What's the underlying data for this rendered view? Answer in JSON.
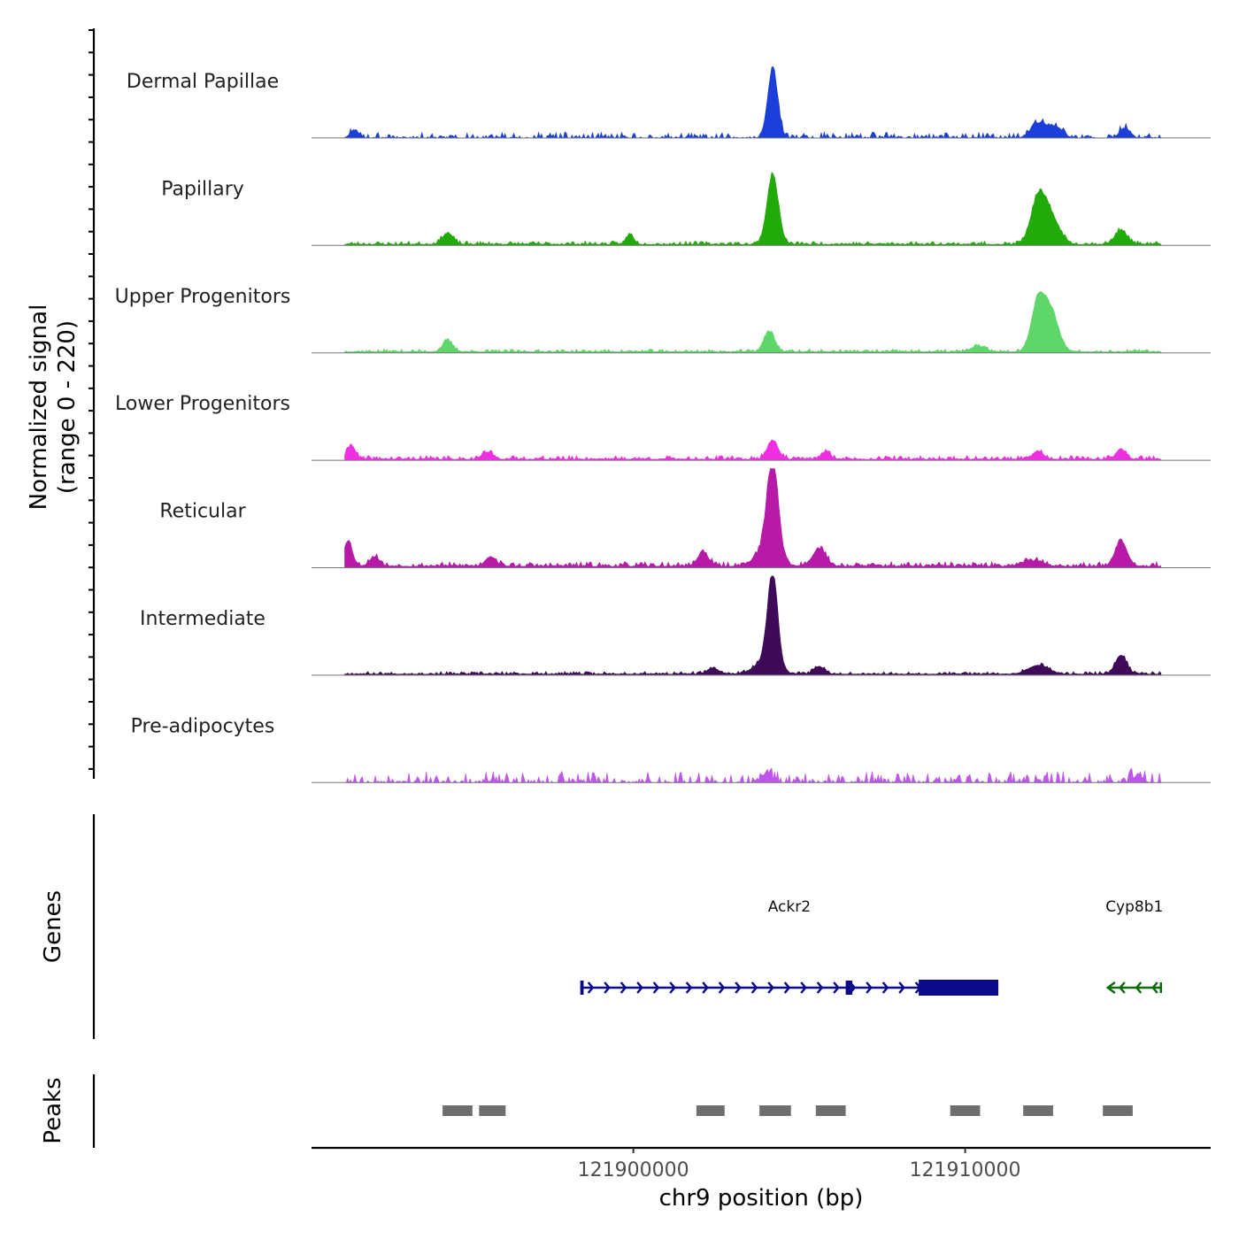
{
  "chart_data": {
    "type": "area",
    "title": "",
    "ylabel": [
      "Normalized signal",
      "(range 0 - 220)"
    ],
    "xlabel": "chr9 position (bp)",
    "chromosome": "chr9",
    "xlim": [
      121890300,
      121917400
    ],
    "ylim": [
      0,
      220
    ],
    "x_ticks": [
      121900000,
      121910000
    ],
    "x_tick_labels": [
      "121900000",
      "121910000"
    ],
    "tracks": [
      {
        "name": "Dermal Papillae",
        "color": "#1b3fd8",
        "noise": {
          "base": 6,
          "amp": 16,
          "seed": 11,
          "gaps": true
        },
        "peaks": [
          {
            "x": 121891600,
            "h": 25,
            "w": 130
          },
          {
            "x": 121904200,
            "h": 218,
            "w": 150
          },
          {
            "x": 121912200,
            "h": 45,
            "w": 220
          },
          {
            "x": 121912700,
            "h": 35,
            "w": 220
          },
          {
            "x": 121914800,
            "h": 30,
            "w": 150
          }
        ]
      },
      {
        "name": "Papillary",
        "color": "#22aa0a",
        "noise": {
          "base": 5,
          "amp": 11,
          "seed": 23,
          "gaps": false
        },
        "peaks": [
          {
            "x": 121894400,
            "h": 35,
            "w": 160
          },
          {
            "x": 121899900,
            "h": 32,
            "w": 110
          },
          {
            "x": 121904200,
            "h": 220,
            "w": 170
          },
          {
            "x": 121912200,
            "h": 140,
            "w": 220
          },
          {
            "x": 121912600,
            "h": 80,
            "w": 250
          },
          {
            "x": 121914700,
            "h": 45,
            "w": 180
          }
        ]
      },
      {
        "name": "Upper Progenitors",
        "color": "#5ed66a",
        "noise": {
          "base": 5,
          "amp": 9,
          "seed": 37,
          "gaps": false
        },
        "peaks": [
          {
            "x": 121894400,
            "h": 35,
            "w": 150
          },
          {
            "x": 121904100,
            "h": 65,
            "w": 160
          },
          {
            "x": 121912200,
            "h": 160,
            "w": 200
          },
          {
            "x": 121912600,
            "h": 120,
            "w": 220
          },
          {
            "x": 121910400,
            "h": 18,
            "w": 200
          }
        ]
      },
      {
        "name": "Lower Progenitors",
        "color": "#f02ee2",
        "noise": {
          "base": 5,
          "amp": 12,
          "seed": 41,
          "gaps": false
        },
        "peaks": [
          {
            "x": 121891500,
            "h": 45,
            "w": 120
          },
          {
            "x": 121895600,
            "h": 22,
            "w": 160
          },
          {
            "x": 121904200,
            "h": 60,
            "w": 160
          },
          {
            "x": 121905800,
            "h": 22,
            "w": 140
          },
          {
            "x": 121912200,
            "h": 25,
            "w": 150
          },
          {
            "x": 121914700,
            "h": 30,
            "w": 150
          }
        ]
      },
      {
        "name": "Reticular",
        "color": "#b81aa8",
        "noise": {
          "base": 7,
          "amp": 15,
          "seed": 53,
          "gaps": false
        },
        "peaks": [
          {
            "x": 121891400,
            "h": 80,
            "w": 130
          },
          {
            "x": 121892200,
            "h": 30,
            "w": 150
          },
          {
            "x": 121895700,
            "h": 30,
            "w": 160
          },
          {
            "x": 121902100,
            "h": 45,
            "w": 160
          },
          {
            "x": 121904200,
            "h": 300,
            "w": 170
          },
          {
            "x": 121904000,
            "h": 50,
            "w": 320
          },
          {
            "x": 121905600,
            "h": 55,
            "w": 200
          },
          {
            "x": 121912000,
            "h": 18,
            "w": 300
          },
          {
            "x": 121914700,
            "h": 80,
            "w": 180
          }
        ]
      },
      {
        "name": "Intermediate",
        "color": "#3f0a58",
        "noise": {
          "base": 5,
          "amp": 9,
          "seed": 67,
          "gaps": false
        },
        "peaks": [
          {
            "x": 121904200,
            "h": 290,
            "w": 150
          },
          {
            "x": 121904000,
            "h": 45,
            "w": 320
          },
          {
            "x": 121905600,
            "h": 25,
            "w": 150
          },
          {
            "x": 121902400,
            "h": 18,
            "w": 180
          },
          {
            "x": 121912200,
            "h": 28,
            "w": 300
          },
          {
            "x": 121914700,
            "h": 60,
            "w": 170
          }
        ]
      },
      {
        "name": "Pre-adipocytes",
        "color": "#c055ee",
        "noise": {
          "base": 10,
          "amp": 32,
          "seed": 79,
          "gaps": true
        },
        "peaks": [
          {
            "x": 121904000,
            "h": 28,
            "w": 140
          },
          {
            "x": 121915200,
            "h": 20,
            "w": 150
          }
        ]
      }
    ],
    "genes_track": {
      "label": "Genes",
      "genes": [
        {
          "name": "Ackr2",
          "color": "#0a0a8a",
          "strand": "+",
          "start": 121898400,
          "end": 121911000,
          "exons": [
            [
              121898400,
              121898500
            ],
            [
              121906400,
              121906600
            ],
            [
              121908600,
              121911000
            ]
          ]
        },
        {
          "name": "Cyp8b1",
          "color": "#0d6a0d",
          "strand": "-",
          "start": 121914300,
          "end": 121915900,
          "exons": []
        }
      ]
    },
    "peaks_track": {
      "label": "Peaks",
      "color": "#6e6e6e",
      "regions": [
        [
          121894250,
          121895150
        ],
        [
          121895350,
          121896150
        ],
        [
          121901900,
          121902750
        ],
        [
          121903800,
          121904750
        ],
        [
          121905500,
          121906400
        ],
        [
          121909550,
          121910450
        ],
        [
          121911750,
          121912650
        ],
        [
          121914150,
          121915050
        ]
      ]
    }
  }
}
